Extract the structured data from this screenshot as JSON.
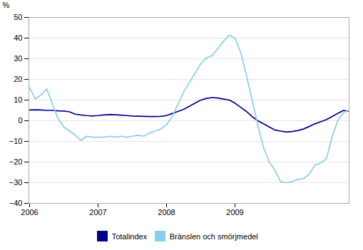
{
  "chart_data": {
    "type": "line",
    "ylabel": "%",
    "categories": [
      "2006",
      null,
      null,
      null,
      null,
      null,
      null,
      null,
      null,
      null,
      null,
      null,
      "2007",
      null,
      null,
      null,
      null,
      null,
      null,
      null,
      null,
      null,
      null,
      null,
      "2008",
      null,
      null,
      null,
      null,
      null,
      null,
      null,
      null,
      null,
      null,
      null,
      "2009",
      null,
      null,
      null,
      null,
      null,
      null,
      null,
      null,
      null,
      null,
      null,
      null,
      null,
      null,
      null,
      null,
      null,
      null,
      null,
      null
    ],
    "series": [
      {
        "name": "Totalindex",
        "color": "#00008B",
        "values": [
          5.2,
          5.3,
          5.2,
          5.0,
          5.0,
          4.8,
          4.7,
          4.3,
          3.2,
          2.8,
          2.5,
          2.3,
          2.5,
          2.8,
          3.0,
          2.9,
          2.7,
          2.5,
          2.3,
          2.2,
          2.1,
          2.0,
          2.0,
          2.1,
          2.5,
          3.5,
          4.5,
          5.5,
          7.0,
          8.5,
          10.0,
          10.8,
          11.2,
          11.0,
          10.5,
          10.0,
          8.5,
          6.5,
          4.5,
          2.0,
          0.0,
          -1.5,
          -3.0,
          -4.5,
          -5.0,
          -5.5,
          -5.2,
          -4.8,
          -4.0,
          -2.8,
          -1.5,
          -0.5,
          0.5,
          2.0,
          3.5,
          5.0,
          4.5
        ]
      },
      {
        "name": "Bränslen och smörjmedel",
        "color": "#87CEEB",
        "values": [
          16.0,
          10.5,
          12.5,
          15.5,
          8.0,
          1.0,
          -3.0,
          -5.0,
          -7.0,
          -9.5,
          -7.5,
          -8.0,
          -8.0,
          -8.0,
          -7.5,
          -8.0,
          -7.5,
          -8.0,
          -7.5,
          -7.0,
          -7.5,
          -6.0,
          -5.0,
          -4.0,
          -2.0,
          2.0,
          8.0,
          14.0,
          18.5,
          23.0,
          27.5,
          30.5,
          31.5,
          35.0,
          38.5,
          41.5,
          40.0,
          33.0,
          22.0,
          10.0,
          -2.0,
          -13.0,
          -20.0,
          -24.0,
          -29.5,
          -30.0,
          -29.5,
          -28.5,
          -28.0,
          -26.0,
          -21.5,
          -20.5,
          -18.5,
          -8.0,
          0.0,
          4.0,
          5.0
        ]
      }
    ],
    "ylim": [
      -40,
      50
    ],
    "yticks": [
      -40,
      -30,
      -20,
      -10,
      0,
      10,
      20,
      30,
      40,
      50
    ],
    "grid": true,
    "legend": "bottom"
  }
}
